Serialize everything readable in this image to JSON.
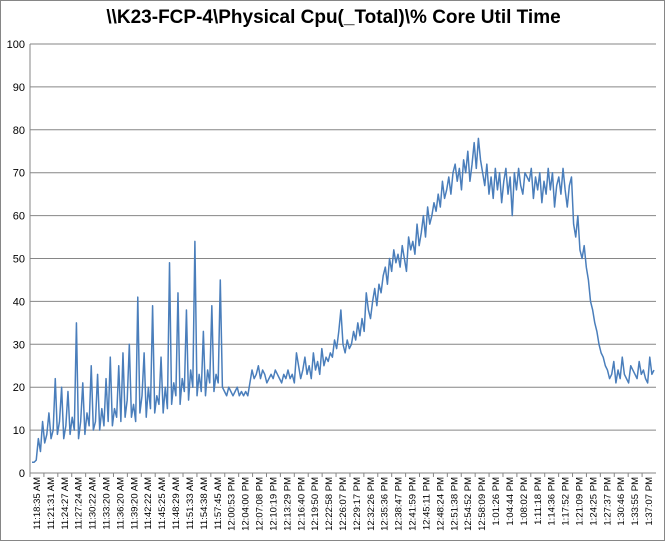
{
  "chart_data": {
    "type": "line",
    "title": "\\\\K23-FCP-4\\Physical Cpu(_Total)\\% Core Util Time",
    "xlabel": "",
    "ylabel": "",
    "ylim": [
      0,
      100
    ],
    "yticks": [
      0,
      10,
      20,
      30,
      40,
      50,
      60,
      70,
      80,
      90,
      100
    ],
    "grid": "horizontal",
    "legend": "none",
    "series_color": "#4a7ebb",
    "x_tick_labels": [
      "11:18:35 AM",
      "11:21:31 AM",
      "11:24:27 AM",
      "11:27:24 AM",
      "11:30:22 AM",
      "11:33:20 AM",
      "11:36:20 AM",
      "11:39:20 AM",
      "11:42:22 AM",
      "11:45:25 AM",
      "11:48:29 AM",
      "11:51:33 AM",
      "11:54:38 AM",
      "11:57:45 AM",
      "12:00:53 PM",
      "12:04:00 PM",
      "12:07:08 PM",
      "12:10:19 PM",
      "12:13:29 PM",
      "12:16:40 PM",
      "12:19:50 PM",
      "12:22:58 PM",
      "12:26:07 PM",
      "12:29:17 PM",
      "12:32:26 PM",
      "12:35:36 PM",
      "12:38:47 PM",
      "12:41:59 PM",
      "12:45:11 PM",
      "12:48:24 PM",
      "12:51:38 PM",
      "12:54:52 PM",
      "12:58:09 PM",
      "1:01:26 PM",
      "1:04:44 PM",
      "1:08:02 PM",
      "1:11:18 PM",
      "1:14:36 PM",
      "1:17:52 PM",
      "1:21:09 PM",
      "1:24:25 PM",
      "1:27:37 PM",
      "1:30:46 PM",
      "1:33:55 PM",
      "1:37:07 PM"
    ],
    "series": [
      {
        "values": [
          2.5,
          2.5,
          3,
          8,
          5,
          12,
          7,
          9,
          14,
          8,
          10,
          22,
          9,
          12,
          20,
          8,
          11,
          19,
          9,
          13,
          10,
          35,
          8,
          12,
          21,
          9,
          14,
          11,
          25,
          10,
          12,
          23,
          10,
          15,
          11,
          22,
          12,
          27,
          11,
          15,
          13,
          25,
          12,
          28,
          13,
          17,
          30,
          13,
          16,
          12,
          41,
          14,
          18,
          28,
          13,
          20,
          15,
          39,
          14,
          18,
          16,
          27,
          14,
          20,
          15,
          49,
          16,
          21,
          18,
          42,
          16,
          22,
          19,
          38,
          17,
          24,
          20,
          54,
          18,
          23,
          19,
          33,
          18,
          24,
          21,
          39,
          19,
          23,
          21,
          45,
          20,
          19,
          18,
          20,
          19,
          18,
          19,
          20,
          18,
          19,
          18,
          19,
          18,
          21,
          24,
          22,
          23,
          25,
          22,
          24,
          23,
          21,
          22,
          23,
          22,
          24,
          23,
          22,
          21,
          23,
          22,
          24,
          22,
          23,
          21,
          28,
          25,
          22,
          24,
          27,
          23,
          25,
          22,
          28,
          24,
          26,
          23,
          29,
          25,
          27,
          26,
          28,
          27,
          31,
          29,
          33,
          38,
          30,
          28,
          31,
          29,
          30,
          33,
          31,
          35,
          32,
          36,
          33,
          42,
          38,
          36,
          40,
          43,
          39,
          44,
          42,
          46,
          48,
          44,
          50,
          47,
          52,
          49,
          51,
          48,
          53,
          50,
          47,
          55,
          52,
          54,
          51,
          58,
          53,
          56,
          60,
          55,
          62,
          58,
          60,
          63,
          61,
          65,
          62,
          68,
          64,
          66,
          69,
          65,
          70,
          72,
          68,
          71,
          66,
          73,
          70,
          75,
          68,
          72,
          77,
          71,
          78,
          73,
          70,
          67,
          72,
          65,
          69,
          64,
          71,
          66,
          70,
          63,
          68,
          71,
          65,
          69,
          60,
          70,
          66,
          71,
          67,
          65,
          70,
          69,
          68,
          71,
          64,
          69,
          66,
          70,
          63,
          68,
          65,
          71,
          66,
          70,
          62,
          67,
          69,
          65,
          71,
          66,
          62,
          67,
          69,
          58,
          55,
          60,
          52,
          50,
          53,
          48,
          45,
          40,
          38,
          35,
          33,
          30,
          28,
          27,
          25,
          24,
          22,
          23,
          26,
          21,
          24,
          22,
          27,
          23,
          22,
          21,
          25,
          24,
          23,
          22,
          26,
          23,
          24,
          22,
          21,
          27,
          23,
          24
        ]
      }
    ]
  }
}
